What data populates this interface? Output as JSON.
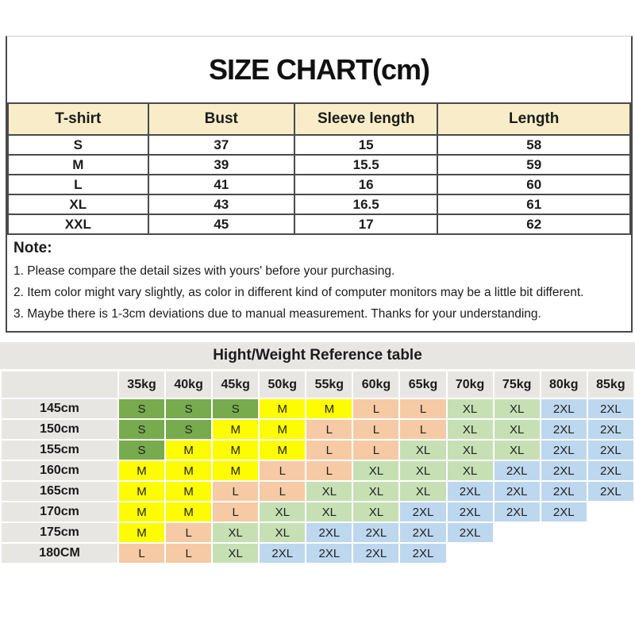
{
  "size_chart": {
    "title": "SIZE CHART(cm)",
    "columns": [
      "T-shirt",
      "Bust",
      "Sleeve length",
      "Length"
    ],
    "rows": [
      [
        "S",
        "37",
        "15",
        "58"
      ],
      [
        "M",
        "39",
        "15.5",
        "59"
      ],
      [
        "L",
        "41",
        "16",
        "60"
      ],
      [
        "XL",
        "43",
        "16.5",
        "61"
      ],
      [
        "XXL",
        "45",
        "17",
        "62"
      ]
    ],
    "header_bg": "#f8edc8"
  },
  "notes": {
    "heading": "Note:",
    "items": [
      "1. Please compare the detail sizes with yours' before your purchasing.",
      "2. Item color might vary slightly, as color in different kind of computer monitors may be a little bit different.",
      "3. Maybe there is 1-3cm deviations due to manual measurement. Thanks for your understanding."
    ]
  },
  "reference_table": {
    "title": "Hight/Weight Reference table",
    "weight_headers": [
      "35kg",
      "40kg",
      "45kg",
      "50kg",
      "55kg",
      "60kg",
      "65kg",
      "70kg",
      "75kg",
      "80kg",
      "85kg"
    ],
    "rows": [
      {
        "height": "145cm",
        "cells": [
          "S",
          "S",
          "S",
          "M",
          "M",
          "L",
          "L",
          "XL",
          "XL",
          "2XL",
          "2XL"
        ]
      },
      {
        "height": "150cm",
        "cells": [
          "S",
          "S",
          "M",
          "M",
          "L",
          "L",
          "L",
          "XL",
          "XL",
          "2XL",
          "2XL"
        ]
      },
      {
        "height": "155cm",
        "cells": [
          "S",
          "M",
          "M",
          "M",
          "L",
          "L",
          "XL",
          "XL",
          "XL",
          "2XL",
          "2XL"
        ]
      },
      {
        "height": "160cm",
        "cells": [
          "M",
          "M",
          "M",
          "L",
          "L",
          "XL",
          "XL",
          "XL",
          "2XL",
          "2XL",
          "2XL"
        ]
      },
      {
        "height": "165cm",
        "cells": [
          "M",
          "M",
          "L",
          "L",
          "XL",
          "XL",
          "XL",
          "2XL",
          "2XL",
          "2XL",
          "2XL"
        ]
      },
      {
        "height": "170cm",
        "cells": [
          "M",
          "M",
          "L",
          "XL",
          "XL",
          "XL",
          "2XL",
          "2XL",
          "2XL",
          "2XL",
          null
        ]
      },
      {
        "height": "175cm",
        "cells": [
          "M",
          "L",
          "XL",
          "XL",
          "2XL",
          "2XL",
          "2XL",
          "2XL",
          null,
          null,
          null
        ]
      },
      {
        "height": "180CM",
        "cells": [
          "L",
          "L",
          "XL",
          "2XL",
          "2XL",
          "2XL",
          "2XL",
          null,
          null,
          null,
          null
        ]
      }
    ],
    "size_colors": {
      "S": "#77ab4d",
      "M": "#fdfc00",
      "L": "#f6caa4",
      "XL": "#c6e0b4",
      "2XL": "#bdd7ee"
    },
    "band_bg": "#e8e6e3",
    "gap_color": "#ffffff"
  }
}
